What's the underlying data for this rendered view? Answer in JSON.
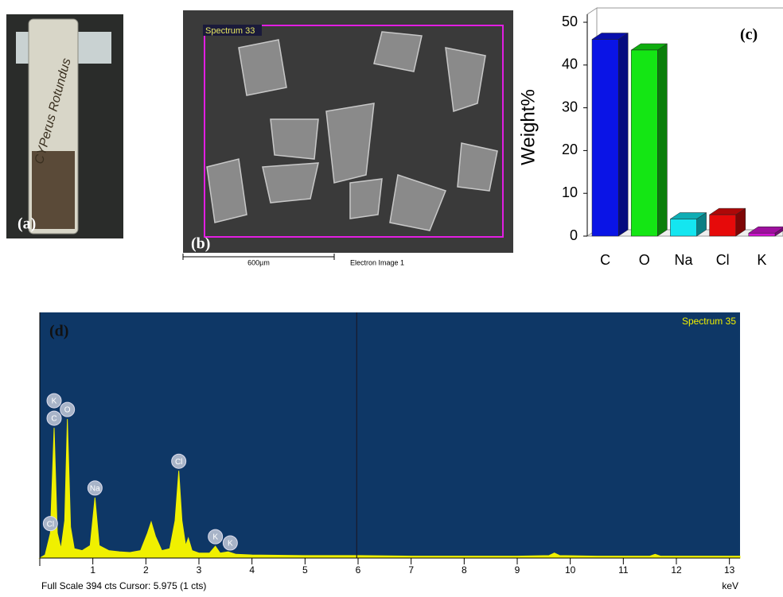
{
  "panels": {
    "a": {
      "label": "(a)",
      "tube_text": "CYPerus Rotundus"
    },
    "b": {
      "label": "(b)",
      "region_label": "Spectrum 33",
      "scale_label": "600µm",
      "image_label": "Electron Image 1"
    }
  },
  "chart_data": [
    {
      "type": "bar",
      "panel_label": "(c)",
      "y_label": "Weight%",
      "categories": [
        "C",
        "O",
        "Na",
        "Cl",
        "K"
      ],
      "values": [
        46,
        43.5,
        4,
        5,
        0.7
      ],
      "colors": [
        "#0a14e6",
        "#14e614",
        "#14e6f0",
        "#e60a0a",
        "#d214d2"
      ],
      "ylim": [
        0,
        50
      ],
      "yticks": [
        0,
        10,
        20,
        30,
        40,
        50
      ]
    },
    {
      "type": "area",
      "panel_label": "(d)",
      "title": "Spectrum 35",
      "x_label": "keV",
      "footer": "Full Scale 394 cts Cursor: 5.975  (1 cts)",
      "cursor": 5.975,
      "x": [
        0,
        0.1,
        0.2,
        0.27,
        0.33,
        0.4,
        0.47,
        0.52,
        0.58,
        0.65,
        0.8,
        0.95,
        1.04,
        1.12,
        1.3,
        1.5,
        1.7,
        1.9,
        2.03,
        2.1,
        2.18,
        2.3,
        2.45,
        2.55,
        2.62,
        2.68,
        2.75,
        2.8,
        2.87,
        3.0,
        3.2,
        3.31,
        3.4,
        3.55,
        3.7,
        4.0,
        5.0,
        6.0,
        7,
        8,
        9,
        9.6,
        9.7,
        9.8,
        10.5,
        11.5,
        11.6,
        11.7,
        12.5,
        13.2
      ],
      "values": [
        0,
        5,
        40,
        209,
        40,
        15,
        60,
        223,
        50,
        15,
        12,
        20,
        97,
        20,
        12,
        10,
        9,
        12,
        40,
        58,
        35,
        12,
        15,
        60,
        140,
        60,
        20,
        32,
        12,
        8,
        8,
        19,
        8,
        10,
        6,
        5,
        4,
        4,
        3,
        3,
        3,
        4,
        8,
        4,
        3,
        3,
        6,
        3,
        3,
        3
      ],
      "xlim": [
        0,
        13.2
      ],
      "ylim": [
        0,
        394
      ],
      "xticks": [
        1,
        2,
        3,
        4,
        5,
        6,
        7,
        8,
        9,
        10,
        11,
        12,
        13
      ],
      "annotations": [
        {
          "text": "C",
          "x": 0.27
        },
        {
          "text": "K",
          "x": 0.27
        },
        {
          "text": "O",
          "x": 0.52
        },
        {
          "text": "Cl",
          "x": 0.2
        },
        {
          "text": "Na",
          "x": 1.04
        },
        {
          "text": "Cl",
          "x": 2.62
        },
        {
          "text": "K",
          "x": 3.31
        },
        {
          "text": "K",
          "x": 3.59
        }
      ],
      "color": "#f0f000",
      "background": "#0e3766"
    }
  ]
}
